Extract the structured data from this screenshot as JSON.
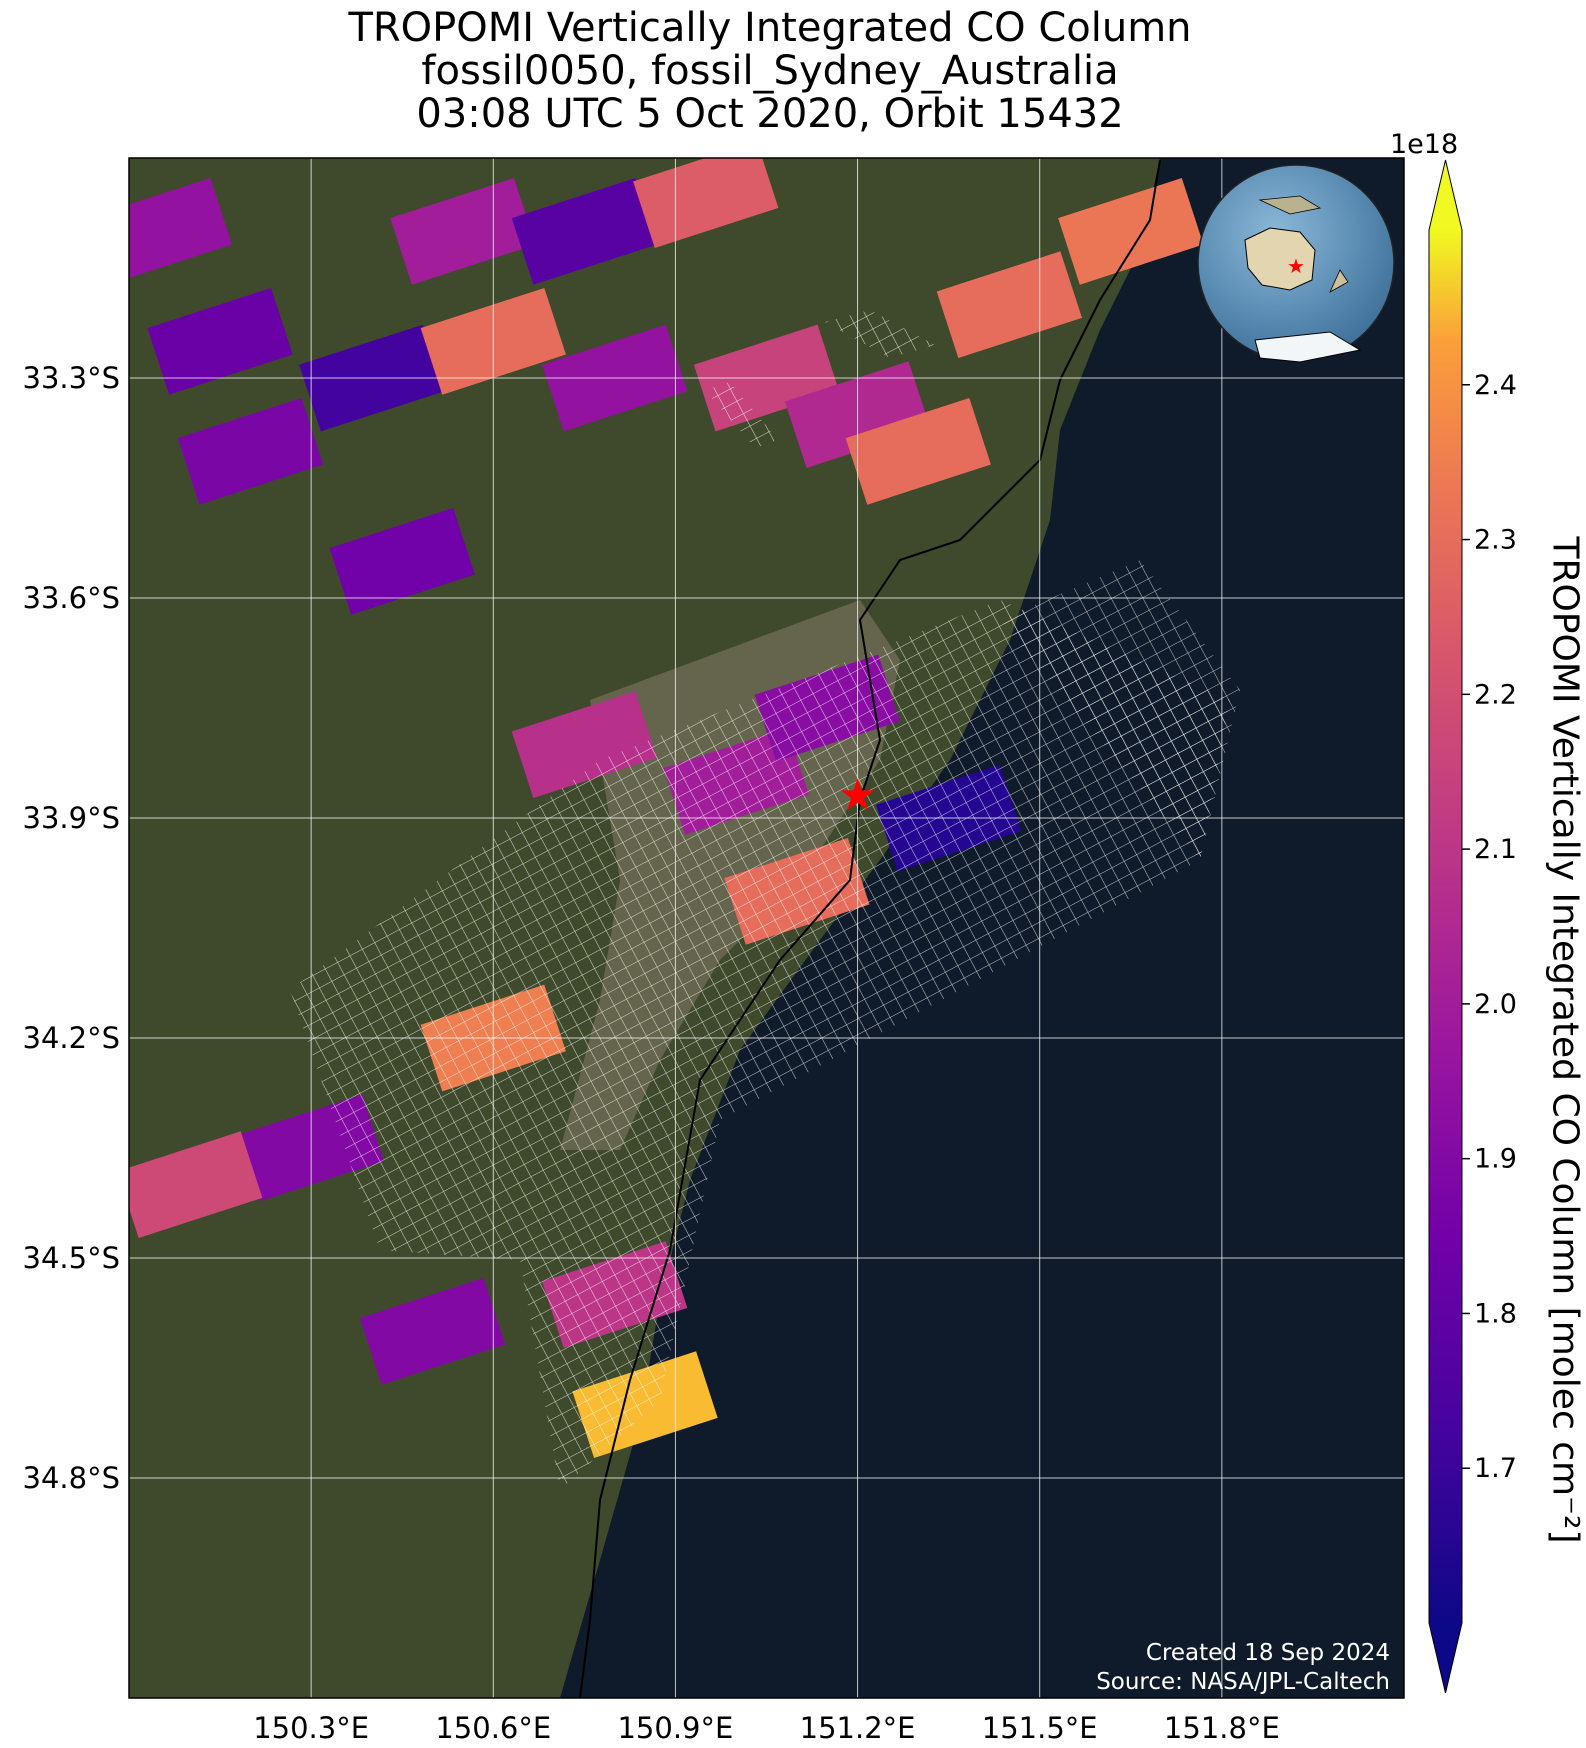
{
  "title": {
    "line1": "TROPOMI Vertically Integrated CO Column",
    "line2": "fossil0050, fossil_Sydney_Australia",
    "line3": "03:08 UTC 5 Oct 2020, Orbit 15432"
  },
  "map": {
    "lon_ticks": [
      "150.3°E",
      "150.6°E",
      "150.9°E",
      "151.2°E",
      "151.5°E",
      "151.8°E"
    ],
    "lat_ticks": [
      "33.3°S",
      "33.6°S",
      "33.9°S",
      "34.2°S",
      "34.5°S",
      "34.8°S"
    ],
    "extent": {
      "lon_min": 150.0,
      "lon_max": 152.1,
      "lat_min": -35.1,
      "lat_max": -33.0
    },
    "target": {
      "name": "star",
      "lon": 151.2,
      "lat": -33.87,
      "color": "#ff0000"
    },
    "credit_line1": "Created 18 Sep 2024",
    "credit_line2": "Source: NASA/JPL-Caltech",
    "inset": "globe-australia"
  },
  "colorbar": {
    "label": "TROPOMI Vertically Integrated CO Column [molec cm⁻²]",
    "exponent": "1e18",
    "ticks": [
      "1.7",
      "1.8",
      "1.9",
      "2.0",
      "2.1",
      "2.2",
      "2.3",
      "2.4"
    ],
    "tick_values": [
      1.7,
      1.8,
      1.9,
      2.0,
      2.1,
      2.2,
      2.3,
      2.4
    ],
    "vmin": 1.6,
    "vmax": 2.5,
    "colormap": "plasma",
    "extend": "both"
  },
  "chart_data": {
    "type": "heatmap",
    "title": "TROPOMI Vertically Integrated CO Column",
    "units": "molec cm⁻²",
    "scale": 1e+18,
    "cells": [
      {
        "lon": 150.05,
        "lat": -33.1,
        "value": 1.95
      },
      {
        "lon": 150.15,
        "lat": -33.25,
        "value": 1.83
      },
      {
        "lon": 150.2,
        "lat": -33.4,
        "value": 1.88
      },
      {
        "lon": 150.4,
        "lat": -33.3,
        "value": 1.72
      },
      {
        "lon": 150.55,
        "lat": -33.1,
        "value": 2.0
      },
      {
        "lon": 150.6,
        "lat": -33.25,
        "value": 2.3
      },
      {
        "lon": 150.75,
        "lat": -33.1,
        "value": 1.78
      },
      {
        "lon": 150.8,
        "lat": -33.3,
        "value": 1.95
      },
      {
        "lon": 150.95,
        "lat": -33.05,
        "value": 2.25
      },
      {
        "lon": 151.05,
        "lat": -33.3,
        "value": 2.15
      },
      {
        "lon": 151.2,
        "lat": -33.35,
        "value": 2.05
      },
      {
        "lon": 151.3,
        "lat": -33.4,
        "value": 2.3
      },
      {
        "lon": 151.45,
        "lat": -33.2,
        "value": 2.3
      },
      {
        "lon": 151.65,
        "lat": -33.1,
        "value": 2.33
      },
      {
        "lon": 150.45,
        "lat": -33.55,
        "value": 1.85
      },
      {
        "lon": 150.75,
        "lat": -33.8,
        "value": 2.08
      },
      {
        "lon": 151.0,
        "lat": -33.85,
        "value": 2.0
      },
      {
        "lon": 151.15,
        "lat": -33.75,
        "value": 1.92
      },
      {
        "lon": 151.35,
        "lat": -33.9,
        "value": 1.65
      },
      {
        "lon": 151.1,
        "lat": -34.0,
        "value": 2.3
      },
      {
        "lon": 150.6,
        "lat": -34.2,
        "value": 2.35
      },
      {
        "lon": 150.3,
        "lat": -34.35,
        "value": 1.9
      },
      {
        "lon": 150.1,
        "lat": -34.4,
        "value": 2.18
      },
      {
        "lon": 150.8,
        "lat": -34.55,
        "value": 2.1
      },
      {
        "lon": 150.85,
        "lat": -34.7,
        "value": 2.45
      },
      {
        "lon": 150.5,
        "lat": -34.6,
        "value": 1.9
      }
    ]
  }
}
